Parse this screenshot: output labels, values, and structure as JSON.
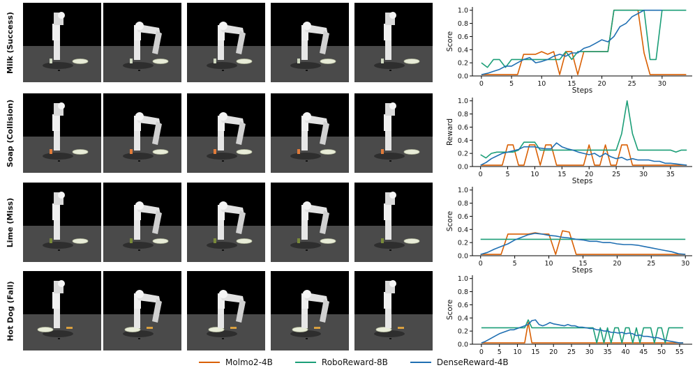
{
  "rows": [
    {
      "label": "Milk (Success)"
    },
    {
      "label": "Soap (Collision)"
    },
    {
      "label": "Lime (Miss)"
    },
    {
      "label": "Hot Dog (Fall)"
    }
  ],
  "series_styles": [
    {
      "name": "Molmo2-4B",
      "color": "#d95f02"
    },
    {
      "name": "RoboReward-8B",
      "color": "#1b9e77"
    },
    {
      "name": "DenseReward-4B",
      "color": "#1f6fb2"
    }
  ],
  "legend": {
    "items": [
      "Molmo2-4B",
      "RoboReward-8B",
      "DenseReward-4B"
    ]
  },
  "chart_data": [
    {
      "type": "line",
      "title": "",
      "xlabel": "Steps",
      "ylabel": "Score",
      "xlim": [
        -1.5,
        35
      ],
      "ylim": [
        0,
        1.05
      ],
      "xticks": [
        0,
        5,
        10,
        15,
        20,
        25,
        30
      ],
      "yticks": [
        0.0,
        0.2,
        0.4,
        0.6,
        0.8,
        1.0
      ],
      "series": [
        {
          "name": "Molmo2-4B",
          "x": [
            0,
            1,
            2,
            3,
            4,
            5,
            6,
            7,
            8,
            9,
            10,
            11,
            12,
            13,
            14,
            15,
            16,
            17,
            18,
            19,
            20,
            21,
            22,
            23,
            24,
            25,
            26,
            27,
            28,
            29,
            30,
            31,
            32,
            33,
            34
          ],
          "y": [
            0.02,
            0.02,
            0.02,
            0.02,
            0.02,
            0.02,
            0.02,
            0.33,
            0.33,
            0.33,
            0.37,
            0.33,
            0.37,
            0.02,
            0.37,
            0.37,
            0.02,
            0.37,
            0.37,
            0.37,
            0.37,
            0.37,
            1.0,
            1.0,
            1.0,
            1.0,
            1.0,
            0.35,
            0.02,
            0.02,
            0.02,
            0.02,
            0.02,
            0.02,
            0.02
          ]
        },
        {
          "name": "RoboReward-8B",
          "x": [
            0,
            1,
            2,
            3,
            4,
            5,
            6,
            7,
            8,
            9,
            10,
            11,
            12,
            13,
            14,
            15,
            16,
            17,
            18,
            19,
            20,
            21,
            22,
            23,
            24,
            25,
            26,
            27,
            28,
            29,
            30,
            31,
            32,
            33,
            34
          ],
          "y": [
            0.2,
            0.13,
            0.25,
            0.25,
            0.13,
            0.25,
            0.25,
            0.25,
            0.25,
            0.25,
            0.25,
            0.25,
            0.25,
            0.25,
            0.37,
            0.25,
            0.37,
            0.37,
            0.37,
            0.37,
            0.37,
            0.37,
            1.0,
            1.0,
            1.0,
            1.0,
            1.0,
            1.0,
            0.25,
            0.25,
            1.0,
            1.0,
            1.0,
            1.0,
            1.0
          ]
        },
        {
          "name": "DenseReward-4B",
          "x": [
            0,
            1,
            2,
            3,
            4,
            5,
            6,
            7,
            8,
            9,
            10,
            11,
            12,
            13,
            14,
            15,
            16,
            17,
            18,
            19,
            20,
            21,
            22,
            23,
            24,
            25,
            26,
            27,
            28,
            29,
            30
          ],
          "y": [
            0.02,
            0.04,
            0.07,
            0.1,
            0.15,
            0.15,
            0.2,
            0.25,
            0.28,
            0.2,
            0.22,
            0.25,
            0.3,
            0.33,
            0.3,
            0.35,
            0.35,
            0.42,
            0.45,
            0.5,
            0.55,
            0.52,
            0.6,
            0.75,
            0.8,
            0.9,
            0.95,
            1.0,
            1.0,
            1.0,
            1.0
          ]
        }
      ]
    },
    {
      "type": "line",
      "title": "",
      "xlabel": "Steps",
      "ylabel": "Reward",
      "xlim": [
        -1.5,
        39
      ],
      "ylim": [
        0,
        1.05
      ],
      "xticks": [
        0,
        5,
        10,
        15,
        20,
        25,
        30,
        35
      ],
      "yticks": [
        0.0,
        0.2,
        0.4,
        0.6,
        0.8,
        1.0
      ],
      "series": [
        {
          "name": "Molmo2-4B",
          "x": [
            0,
            1,
            2,
            3,
            4,
            5,
            6,
            7,
            8,
            9,
            10,
            11,
            12,
            13,
            14,
            15,
            16,
            17,
            18,
            19,
            20,
            21,
            22,
            23,
            24,
            25,
            26,
            27,
            28,
            29,
            30,
            31,
            32,
            33,
            34,
            35,
            36,
            37,
            38
          ],
          "y": [
            0.02,
            0.02,
            0.02,
            0.02,
            0.02,
            0.33,
            0.33,
            0.02,
            0.02,
            0.33,
            0.33,
            0.02,
            0.33,
            0.33,
            0.02,
            0.02,
            0.02,
            0.02,
            0.02,
            0.02,
            0.33,
            0.02,
            0.02,
            0.33,
            0.02,
            0.02,
            0.33,
            0.33,
            0.02,
            0.02,
            0.02,
            0.02,
            0.02,
            0.02,
            0.02,
            0.02,
            0.02,
            0.02,
            0.02
          ]
        },
        {
          "name": "RoboReward-8B",
          "x": [
            0,
            1,
            2,
            3,
            4,
            5,
            6,
            7,
            8,
            9,
            10,
            11,
            12,
            13,
            14,
            15,
            16,
            17,
            18,
            19,
            20,
            21,
            22,
            23,
            24,
            25,
            26,
            27,
            28,
            29,
            30,
            31,
            32,
            33,
            34,
            35,
            36,
            37,
            38
          ],
          "y": [
            0.18,
            0.13,
            0.2,
            0.22,
            0.22,
            0.22,
            0.22,
            0.25,
            0.37,
            0.37,
            0.37,
            0.25,
            0.25,
            0.25,
            0.25,
            0.25,
            0.25,
            0.25,
            0.25,
            0.25,
            0.25,
            0.25,
            0.25,
            0.25,
            0.25,
            0.25,
            0.5,
            1.0,
            0.5,
            0.25,
            0.25,
            0.25,
            0.25,
            0.25,
            0.25,
            0.25,
            0.22,
            0.25,
            0.25
          ]
        },
        {
          "name": "DenseReward-4B",
          "x": [
            0,
            1,
            2,
            3,
            4,
            5,
            6,
            7,
            8,
            9,
            10,
            11,
            12,
            13,
            14,
            15,
            16,
            17,
            18,
            19,
            20,
            21,
            22,
            23,
            24,
            25,
            26,
            27,
            28,
            29,
            30,
            31,
            32,
            33,
            34,
            35,
            36,
            37,
            38
          ],
          "y": [
            0.02,
            0.06,
            0.12,
            0.16,
            0.2,
            0.22,
            0.24,
            0.26,
            0.3,
            0.3,
            0.3,
            0.28,
            0.27,
            0.27,
            0.36,
            0.3,
            0.27,
            0.25,
            0.22,
            0.2,
            0.18,
            0.2,
            0.15,
            0.2,
            0.15,
            0.12,
            0.14,
            0.1,
            0.12,
            0.1,
            0.1,
            0.1,
            0.08,
            0.08,
            0.05,
            0.05,
            0.04,
            0.03,
            0.02
          ]
        }
      ]
    },
    {
      "type": "line",
      "title": "",
      "xlabel": "Steps",
      "ylabel": "Score",
      "xlim": [
        -1.2,
        31
      ],
      "ylim": [
        0,
        1.05
      ],
      "xticks": [
        0,
        5,
        10,
        15,
        20,
        25,
        30
      ],
      "yticks": [
        0.0,
        0.2,
        0.4,
        0.6,
        0.8,
        1.0
      ],
      "series": [
        {
          "name": "Molmo2-4B",
          "x": [
            0,
            1,
            2,
            3,
            4,
            5,
            6,
            7,
            8,
            9,
            10,
            11,
            12,
            13,
            14,
            15,
            16,
            17,
            18,
            19,
            20,
            21,
            22,
            23,
            24,
            25,
            26,
            27,
            28,
            29,
            30
          ],
          "y": [
            0.02,
            0.02,
            0.02,
            0.02,
            0.33,
            0.33,
            0.33,
            0.33,
            0.35,
            0.33,
            0.33,
            0.02,
            0.38,
            0.36,
            0.02,
            0.02,
            0.02,
            0.02,
            0.02,
            0.02,
            0.02,
            0.02,
            0.02,
            0.02,
            0.02,
            0.02,
            0.02,
            0.02,
            0.02,
            0.02,
            0.02
          ]
        },
        {
          "name": "RoboReward-8B",
          "x": [
            0,
            30
          ],
          "y": [
            0.25,
            0.25
          ]
        },
        {
          "name": "DenseReward-4B",
          "x": [
            0,
            1,
            2,
            3,
            4,
            5,
            6,
            7,
            8,
            9,
            10,
            11,
            12,
            13,
            14,
            15,
            16,
            17,
            18,
            19,
            20,
            21,
            22,
            23,
            24,
            25,
            26,
            27,
            28,
            29,
            30
          ],
          "y": [
            0.02,
            0.05,
            0.1,
            0.14,
            0.18,
            0.24,
            0.28,
            0.32,
            0.34,
            0.33,
            0.31,
            0.3,
            0.28,
            0.27,
            0.25,
            0.24,
            0.22,
            0.22,
            0.2,
            0.2,
            0.18,
            0.17,
            0.17,
            0.16,
            0.14,
            0.12,
            0.1,
            0.08,
            0.06,
            0.03,
            0.02
          ]
        }
      ]
    },
    {
      "type": "line",
      "title": "",
      "xlabel": "Steps",
      "ylabel": "Score",
      "xlim": [
        -2.5,
        58.5
      ],
      "ylim": [
        0,
        1.05
      ],
      "xticks": [
        0,
        5,
        10,
        15,
        20,
        25,
        30,
        35,
        40,
        45,
        50,
        55
      ],
      "yticks": [
        0.0,
        0.2,
        0.4,
        0.6,
        0.8,
        1.0
      ],
      "series": [
        {
          "name": "Molmo2-4B",
          "x": [
            0,
            12,
            13,
            14,
            15,
            56
          ],
          "y": [
            0.02,
            0.02,
            0.33,
            0.02,
            0.02,
            0.02
          ]
        },
        {
          "name": "RoboReward-8B",
          "x": [
            0,
            1,
            2,
            3,
            4,
            5,
            6,
            7,
            8,
            9,
            10,
            11,
            12,
            13,
            14,
            15,
            16,
            17,
            18,
            19,
            20,
            21,
            22,
            23,
            24,
            25,
            26,
            27,
            28,
            29,
            30,
            31,
            32,
            33,
            34,
            35,
            36,
            37,
            38,
            39,
            40,
            41,
            42,
            43,
            44,
            45,
            46,
            47,
            48,
            49,
            50,
            51,
            52,
            53,
            54,
            55,
            56
          ],
          "y": [
            0.25,
            0.25,
            0.25,
            0.25,
            0.25,
            0.25,
            0.25,
            0.25,
            0.25,
            0.25,
            0.25,
            0.25,
            0.25,
            0.37,
            0.25,
            0.25,
            0.25,
            0.25,
            0.25,
            0.25,
            0.25,
            0.25,
            0.25,
            0.25,
            0.25,
            0.25,
            0.25,
            0.25,
            0.25,
            0.25,
            0.25,
            0.25,
            0.02,
            0.25,
            0.02,
            0.25,
            0.02,
            0.25,
            0.25,
            0.02,
            0.25,
            0.25,
            0.02,
            0.25,
            0.02,
            0.25,
            0.25,
            0.25,
            0.02,
            0.25,
            0.25,
            0.02,
            0.25,
            0.25,
            0.25,
            0.25,
            0.25
          ]
        },
        {
          "name": "DenseReward-4B",
          "x": [
            0,
            1,
            2,
            3,
            4,
            5,
            6,
            7,
            8,
            9,
            10,
            11,
            12,
            13,
            14,
            15,
            16,
            17,
            18,
            19,
            20,
            21,
            22,
            23,
            24,
            25,
            26,
            27,
            28,
            29,
            30,
            31,
            32,
            33,
            34,
            35,
            36,
            37,
            38,
            39,
            40,
            41,
            42,
            43,
            44,
            45,
            46,
            47,
            48,
            49,
            50,
            51,
            52,
            53,
            54,
            55,
            56
          ],
          "y": [
            0.02,
            0.04,
            0.07,
            0.1,
            0.13,
            0.16,
            0.18,
            0.2,
            0.22,
            0.22,
            0.24,
            0.26,
            0.28,
            0.3,
            0.36,
            0.37,
            0.3,
            0.28,
            0.3,
            0.33,
            0.31,
            0.3,
            0.29,
            0.28,
            0.3,
            0.28,
            0.28,
            0.26,
            0.26,
            0.25,
            0.24,
            0.24,
            0.22,
            0.22,
            0.2,
            0.2,
            0.18,
            0.18,
            0.17,
            0.18,
            0.16,
            0.17,
            0.16,
            0.13,
            0.14,
            0.12,
            0.12,
            0.11,
            0.1,
            0.1,
            0.08,
            0.06,
            0.05,
            0.04,
            0.03,
            0.02,
            0.02
          ]
        }
      ]
    }
  ]
}
